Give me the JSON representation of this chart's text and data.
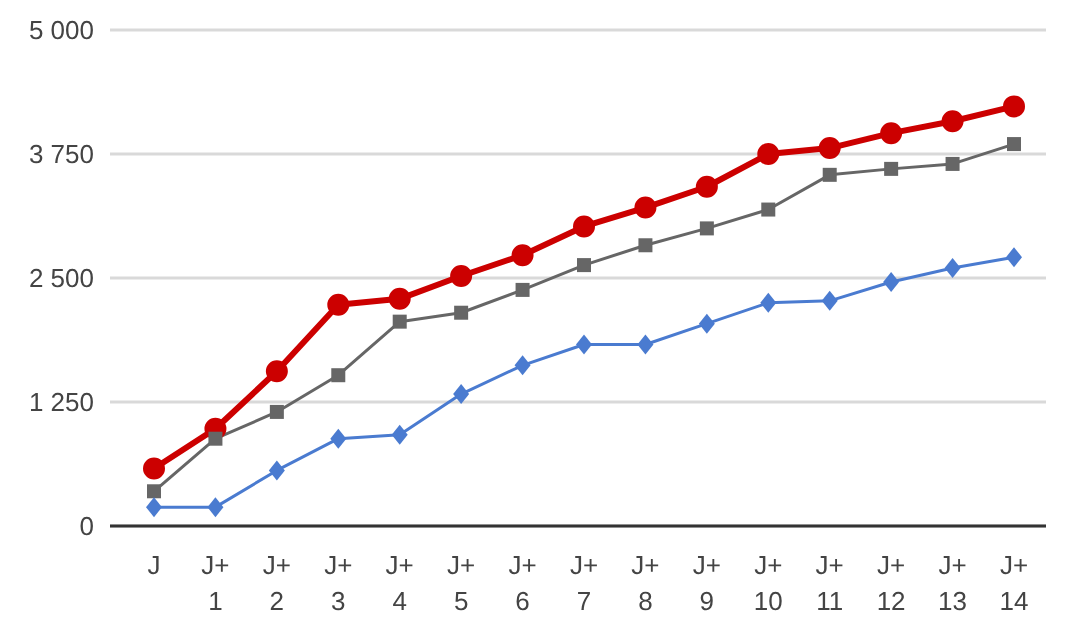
{
  "chart_data": {
    "type": "line",
    "categories": [
      "J",
      "J+\n1",
      "J+\n2",
      "J+\n3",
      "J+\n4",
      "J+\n5",
      "J+\n6",
      "J+\n7",
      "J+\n8",
      "J+\n9",
      "J+\n10",
      "J+\n11",
      "J+\n12",
      "J+\n13",
      "J+\n14"
    ],
    "series": [
      {
        "color": "#cc0000",
        "marker": "circle",
        "values": [
          580,
          980,
          1560,
          2230,
          2290,
          2520,
          2730,
          3020,
          3210,
          3420,
          3750,
          3810,
          3960,
          4080,
          4230
        ]
      },
      {
        "color": "#666666",
        "marker": "square",
        "values": [
          350,
          880,
          1150,
          1520,
          2060,
          2150,
          2380,
          2630,
          2830,
          3000,
          3190,
          3540,
          3600,
          3650,
          3850
        ]
      },
      {
        "color": "#4a7bd0",
        "marker": "diamond",
        "values": [
          190,
          190,
          560,
          880,
          920,
          1330,
          1620,
          1830,
          1830,
          2040,
          2250,
          2270,
          2460,
          2600,
          2710
        ]
      }
    ],
    "ylim": [
      0,
      5000
    ],
    "yticks": [
      0,
      {
        "value": 1250,
        "label": "1 250"
      },
      {
        "value": 2500,
        "label": "2 500"
      },
      {
        "value": 3750,
        "label": "3 750"
      },
      {
        "value": 5000,
        "label": "5 000"
      }
    ],
    "grid": "y",
    "legend": false
  }
}
